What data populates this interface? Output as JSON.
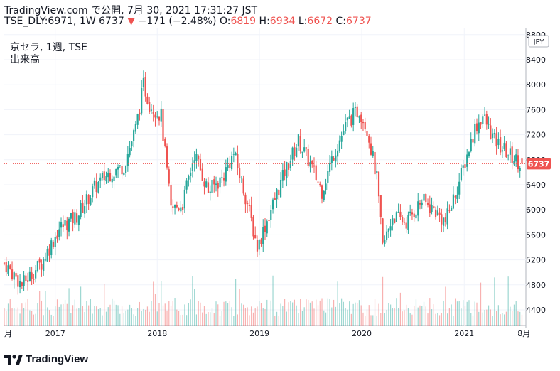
{
  "header": {
    "line1": "TradingView.com で公開, 7月 30, 2021 17:31:27 JST",
    "symbol": "TSE_DLY:6971, 1W 6737",
    "change_arrow": "▼",
    "change": "−171 (−2.48%)",
    "o_label": "O:",
    "o_value": "6819",
    "h_label": "H:",
    "h_value": "6934",
    "l_label": "L:",
    "l_value": "6672",
    "c_label": "C:",
    "c_value": "6737"
  },
  "legend": {
    "line1": "京セラ, 1週, TSE",
    "line2": "出来高"
  },
  "brand": {
    "name": "TradingView",
    "logo_icon": "tradingview-logo-icon"
  },
  "chart_data": {
    "type": "candlestick",
    "currency": "JPY",
    "last_price": 6737,
    "last_price_label": "6737",
    "y_ticks": [
      8800,
      8400,
      8000,
      7600,
      7200,
      6800,
      6400,
      6000,
      5600,
      5200,
      4800,
      4400
    ],
    "y_tick_labels": [
      "8800",
      "8400",
      "8000",
      "7600",
      "7200",
      "6800",
      "6400",
      "6000",
      "5600",
      "5200",
      "4800",
      "4400"
    ],
    "x_labels": [
      "月",
      "2017",
      "2018",
      "2019",
      "2020",
      "2021",
      "8月"
    ],
    "x_label_dates": [
      "2016-07-04",
      "2017-01-02",
      "2018-01-01",
      "2019-01-01",
      "2020-01-01",
      "2021-01-01",
      "2021-08-02"
    ],
    "ylim": [
      4150,
      8900
    ],
    "xlim": [
      "2016-07-04",
      "2021-08-09"
    ],
    "grid": true,
    "up_color": "#26a69a",
    "down_color": "#ef5350",
    "anchors": [
      [
        "2016-07-04",
        5150
      ],
      [
        "2016-09-05",
        4800
      ],
      [
        "2016-11-14",
        5150
      ],
      [
        "2017-01-16",
        5700
      ],
      [
        "2017-03-20",
        5900
      ],
      [
        "2017-05-22",
        6350
      ],
      [
        "2017-07-03",
        6550
      ],
      [
        "2017-09-04",
        6700
      ],
      [
        "2017-10-16",
        7300
      ],
      [
        "2017-11-13",
        8000
      ],
      [
        "2017-12-04",
        7700
      ],
      [
        "2018-01-15",
        7500
      ],
      [
        "2018-02-19",
        6000
      ],
      [
        "2018-04-02",
        6100
      ],
      [
        "2018-05-14",
        6900
      ],
      [
        "2018-07-02",
        6300
      ],
      [
        "2018-08-20",
        6500
      ],
      [
        "2018-10-01",
        6900
      ],
      [
        "2018-11-19",
        6100
      ],
      [
        "2018-12-24",
        5400
      ],
      [
        "2019-02-11",
        6000
      ],
      [
        "2019-04-01",
        6600
      ],
      [
        "2019-05-20",
        7100
      ],
      [
        "2019-06-24",
        6800
      ],
      [
        "2019-08-12",
        6300
      ],
      [
        "2019-09-23",
        6900
      ],
      [
        "2019-11-11",
        7400
      ],
      [
        "2019-12-23",
        7600
      ],
      [
        "2020-01-20",
        7300
      ],
      [
        "2020-02-24",
        6500
      ],
      [
        "2020-03-16",
        5400
      ],
      [
        "2020-04-20",
        5900
      ],
      [
        "2020-06-08",
        5800
      ],
      [
        "2020-08-03",
        6150
      ],
      [
        "2020-09-14",
        6000
      ],
      [
        "2020-10-26",
        5800
      ],
      [
        "2020-12-14",
        6450
      ],
      [
        "2021-02-08",
        7300
      ],
      [
        "2021-03-08",
        7500
      ],
      [
        "2021-04-19",
        7100
      ],
      [
        "2021-06-07",
        6900
      ],
      [
        "2021-07-05",
        6800
      ],
      [
        "2021-07-26",
        6737
      ]
    ],
    "volume_label": "出来高"
  }
}
